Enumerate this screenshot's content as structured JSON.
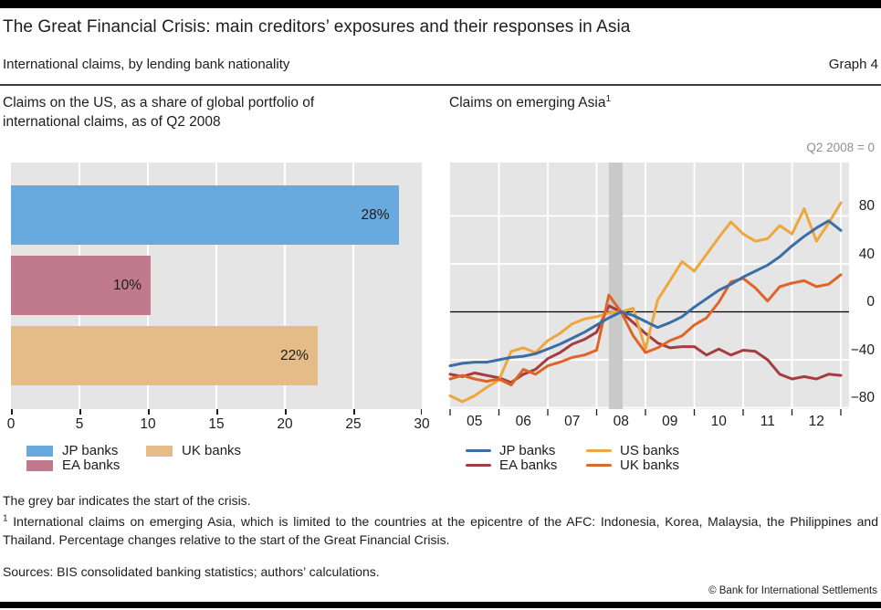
{
  "header": {
    "title": "The Great Financial Crisis: main creditors’ exposures and their responses in Asia",
    "subtitle": "International claims, by lending bank nationality",
    "graph_label": "Graph 4"
  },
  "panels": {
    "left_title_line1": "Claims on the US, as a share of global portfolio of",
    "left_title_line2": "international claims, as of Q2 2008",
    "right_title": "Claims on emerging Asia",
    "right_title_footnote_marker": "1",
    "right_axis_note": "Q2 2008 = 0"
  },
  "chart_data": [
    {
      "type": "bar",
      "orientation": "horizontal",
      "title": "Claims on the US, as a share of global portfolio of international claims, as of Q2 2008",
      "categories": [
        "JP banks",
        "EA banks",
        "UK banks"
      ],
      "values": [
        28.3,
        10.2,
        22.4
      ],
      "bar_labels": [
        "28%",
        "10%",
        "22%"
      ],
      "bar_colors": [
        "#69aade",
        "#c0798d",
        "#e3bc87"
      ],
      "xlim": [
        0,
        30
      ],
      "x_ticks": [
        0,
        5,
        10,
        15,
        20,
        25,
        30
      ],
      "grid": "vertical-white-on-grey",
      "legend_items": [
        {
          "label": "JP banks",
          "color": "#69aade"
        },
        {
          "label": "UK banks",
          "color": "#e3bc87"
        },
        {
          "label": "EA banks",
          "color": "#c0798d"
        }
      ]
    },
    {
      "type": "line",
      "title": "Claims on emerging Asia",
      "unit_note": "Q2 2008 = 0",
      "x_quarters": [
        "2004 Q4",
        "2005 Q1",
        "2005 Q2",
        "2005 Q3",
        "2005 Q4",
        "2006 Q1",
        "2006 Q2",
        "2006 Q3",
        "2006 Q4",
        "2007 Q1",
        "2007 Q2",
        "2007 Q3",
        "2007 Q4",
        "2008 Q1",
        "2008 Q2",
        "2008 Q3",
        "2008 Q4",
        "2009 Q1",
        "2009 Q2",
        "2009 Q3",
        "2009 Q4",
        "2010 Q1",
        "2010 Q2",
        "2010 Q3",
        "2010 Q4",
        "2011 Q1",
        "2011 Q2",
        "2011 Q3",
        "2011 Q4",
        "2012 Q1",
        "2012 Q2",
        "2012 Q3",
        "2012 Q4"
      ],
      "year_tick_labels": [
        "05",
        "06",
        "07",
        "08",
        "09",
        "10",
        "11",
        "12"
      ],
      "ylim": [
        -80,
        125
      ],
      "y_ticks": [
        80,
        40,
        0,
        -40,
        -80
      ],
      "y_tick_labels": [
        "80",
        "40",
        "0",
        "−40",
        "−80"
      ],
      "crisis_band_quarter": "2008 Q2",
      "series": [
        {
          "name": "JP banks",
          "color": "#3a6ea5",
          "values": [
            -45,
            -43,
            -42,
            -42,
            -40,
            -38,
            -37,
            -35,
            -31,
            -27,
            -22,
            -17,
            -11,
            -5,
            0,
            -3,
            -8,
            -13,
            -9,
            -4,
            4,
            11,
            18,
            23,
            29,
            34,
            39,
            46,
            55,
            63,
            70,
            76,
            68
          ]
        },
        {
          "name": "EA banks",
          "color": "#a53d3f",
          "values": [
            -52,
            -54,
            -51,
            -53,
            -55,
            -59,
            -52,
            -48,
            -39,
            -34,
            -27,
            -23,
            -17,
            5,
            0,
            -9,
            -18,
            -26,
            -30,
            -29,
            -29,
            -36,
            -31,
            -36,
            -32,
            -33,
            -40,
            -52,
            -56,
            -54,
            -56,
            -52,
            -53
          ]
        },
        {
          "name": "US banks",
          "color": "#eea73d",
          "values": [
            -70,
            -75,
            -70,
            -63,
            -57,
            -33,
            -30,
            -34,
            -24,
            -18,
            -10,
            -6,
            -4,
            -1,
            0,
            3,
            -31,
            10,
            26,
            42,
            34,
            48,
            62,
            75,
            65,
            59,
            61,
            72,
            65,
            86,
            59,
            74,
            91
          ]
        },
        {
          "name": "UK banks",
          "color": "#de6527",
          "values": [
            -56,
            -53,
            -56,
            -58,
            -56,
            -61,
            -48,
            -52,
            -45,
            -42,
            -38,
            -36,
            -32,
            14,
            0,
            -20,
            -34,
            -30,
            -24,
            -20,
            -11,
            -5,
            8,
            25,
            28,
            20,
            9,
            21,
            24,
            26,
            21,
            23,
            31
          ]
        }
      ],
      "legend_items": [
        {
          "label": "JP banks",
          "color": "#3a6ea5"
        },
        {
          "label": "US banks",
          "color": "#eea73d"
        },
        {
          "label": "EA banks",
          "color": "#a53d3f"
        },
        {
          "label": "UK banks",
          "color": "#de6527"
        }
      ]
    }
  ],
  "footer": {
    "grey_bar_note": "The grey bar indicates the start of the crisis.",
    "footnote_marker": "1",
    "footnote_text": "International claims on emerging Asia, which is limited to the countries at the epicentre of the AFC: Indonesia, Korea, Malaysia, the Philippines and Thailand. Percentage changes relative to the start of the Great Financial Crisis.",
    "sources": "Sources: BIS consolidated banking statistics; authors’ calculations.",
    "copyright": "© Bank for International Settlements"
  },
  "colors": {
    "plot_background": "#e5e5e5",
    "crisis_band": "#c9c9c9",
    "gridline": "#ffffff",
    "zero_line": "#000000",
    "text": "#1d1d1b",
    "muted_text": "#8f8f8f"
  }
}
